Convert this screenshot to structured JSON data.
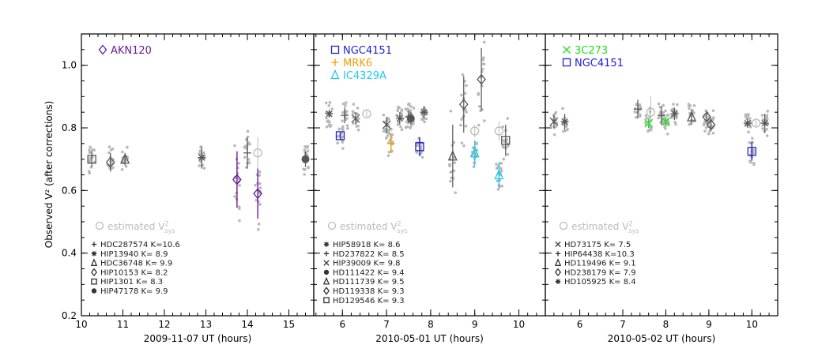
{
  "ylabel": "Observed V² (after corrections)",
  "ylim": [
    0.2,
    1.1
  ],
  "yticks": [
    0.2,
    0.4,
    0.6,
    0.8,
    1.0
  ],
  "ytick_labels": [
    "0.2",
    "0.4",
    "0.6",
    "0.8",
    "1.0"
  ],
  "colors": {
    "cal": "#555555",
    "scatter": "#b8b8b8",
    "est": "#bbbbbb",
    "purple": "#6a1b9a",
    "blue": "#2222cc",
    "orange": "#f0a000",
    "cyan": "#1ec8f0",
    "green": "#22e022"
  },
  "chart_data": [
    {
      "type": "scatter",
      "xlabel": "2009-11-07 UT (hours)",
      "xlim": [
        10,
        15.6
      ],
      "xticks": [
        10,
        11,
        12,
        13,
        14,
        15
      ],
      "xtick_labels": [
        "10",
        "11",
        "12",
        "13",
        "14",
        "15"
      ],
      "targets": [
        {
          "name": "AKN120",
          "symbol": "diamond",
          "color": "purple",
          "points": [
            {
              "x": 13.75,
              "y": 0.635,
              "err": 0.09
            },
            {
              "x": 14.25,
              "y": 0.59,
              "err": 0.08
            }
          ]
        }
      ],
      "estimated_label": "estimated V",
      "estimated_sup": "2",
      "estimated_sub": "sys",
      "estimated": [
        {
          "x": 14.25,
          "y": 0.72,
          "err": 0.05
        }
      ],
      "calibrators": [
        {
          "symbol": "plus",
          "label": "HDC287574 K=10.6",
          "points": [
            {
              "x": 14.0,
              "y": 0.72,
              "err": 0.05
            }
          ]
        },
        {
          "symbol": "asterisk",
          "label": "HIP13940 K= 8.9",
          "points": [
            {
              "x": 12.9,
              "y": 0.705,
              "err": 0.035
            }
          ]
        },
        {
          "symbol": "triangle",
          "label": "HDC36748 K= 9.9",
          "points": [
            {
              "x": 11.05,
              "y": 0.7,
              "err": 0.02
            }
          ]
        },
        {
          "symbol": "diamond",
          "label": "HIP10153 K= 8.2",
          "points": [
            {
              "x": 10.7,
              "y": 0.69,
              "err": 0.03
            }
          ]
        },
        {
          "symbol": "square",
          "label": "HIP1301 K= 8.3",
          "points": [
            {
              "x": 10.25,
              "y": 0.7,
              "err": 0.025
            }
          ]
        },
        {
          "symbol": "dot",
          "label": "HIP47178 K= 9.9",
          "points": [
            {
              "x": 15.4,
              "y": 0.7,
              "err": 0.025
            }
          ]
        }
      ]
    },
    {
      "type": "scatter",
      "xlabel": "2010-05-01 UT (hours)",
      "xlim": [
        5.35,
        10.6
      ],
      "xticks": [
        6,
        7,
        8,
        9,
        10
      ],
      "xtick_labels": [
        "6",
        "7",
        "8",
        "9",
        "10"
      ],
      "targets": [
        {
          "name": "NGC4151",
          "symbol": "square",
          "color": "blue",
          "points": [
            {
              "x": 5.95,
              "y": 0.775,
              "err": 0.01
            },
            {
              "x": 7.75,
              "y": 0.74,
              "err": 0.03
            }
          ]
        },
        {
          "name": "MRK6",
          "symbol": "plus",
          "color": "orange",
          "points": [
            {
              "x": 7.1,
              "y": 0.75,
              "err": 0.03
            }
          ]
        },
        {
          "name": "IC4329A",
          "symbol": "triangle",
          "color": "cyan",
          "points": [
            {
              "x": 9.0,
              "y": 0.72,
              "err": 0.04
            },
            {
              "x": 9.55,
              "y": 0.65,
              "err": 0.04
            }
          ]
        }
      ],
      "estimated_label": "estimated V",
      "estimated_sup": "2",
      "estimated_sub": "sys",
      "estimated": [
        {
          "x": 6.55,
          "y": 0.845,
          "err": 0.01
        },
        {
          "x": 9.0,
          "y": 0.79,
          "err": 0.02
        },
        {
          "x": 9.55,
          "y": 0.79,
          "err": 0.03
        }
      ],
      "calibrators": [
        {
          "symbol": "asterisk",
          "label": "HIP58918 K= 8.6",
          "points": [
            {
              "x": 5.7,
              "y": 0.845,
              "err": 0.01
            },
            {
              "x": 7.3,
              "y": 0.83,
              "err": 0.02
            },
            {
              "x": 7.85,
              "y": 0.85,
              "err": 0.02
            }
          ]
        },
        {
          "symbol": "plus",
          "label": "HD237822 K= 8.5",
          "points": [
            {
              "x": 6.05,
              "y": 0.84,
              "err": 0.025
            },
            {
              "x": 7.5,
              "y": 0.835,
              "err": 0.02
            }
          ]
        },
        {
          "symbol": "cross",
          "label": "HIP39009 K= 9.8",
          "points": [
            {
              "x": 6.3,
              "y": 0.83,
              "err": 0.02
            },
            {
              "x": 7.0,
              "y": 0.81,
              "err": 0.025
            }
          ]
        },
        {
          "symbol": "dot",
          "label": "HD111422 K= 9.4",
          "points": [
            {
              "x": 7.55,
              "y": 0.83,
              "err": 0.02
            }
          ]
        },
        {
          "symbol": "triangle",
          "label": "HD111739 K= 9.5",
          "points": [
            {
              "x": 8.5,
              "y": 0.71,
              "err": 0.1
            }
          ]
        },
        {
          "symbol": "diamond",
          "label": "HD119338 K= 9.3",
          "points": [
            {
              "x": 8.75,
              "y": 0.875,
              "err": 0.09
            },
            {
              "x": 9.15,
              "y": 0.955,
              "err": 0.1
            }
          ]
        },
        {
          "symbol": "square",
          "label": "HD129546 K= 9.3",
          "points": [
            {
              "x": 9.7,
              "y": 0.76,
              "err": 0.05
            }
          ]
        }
      ]
    },
    {
      "type": "scatter",
      "xlabel": "2010-05-02 UT (hours)",
      "xlim": [
        5.2,
        10.6
      ],
      "xticks": [
        6,
        7,
        8,
        9,
        10
      ],
      "xtick_labels": [
        "6",
        "7",
        "8",
        "9",
        "10"
      ],
      "targets": [
        {
          "name": "3C273",
          "symbol": "cross",
          "color": "green",
          "points": [
            {
              "x": 7.6,
              "y": 0.815,
              "err": 0.015
            },
            {
              "x": 8.0,
              "y": 0.82,
              "err": 0.015
            }
          ]
        },
        {
          "name": "NGC4151",
          "symbol": "square",
          "color": "blue",
          "points": [
            {
              "x": 10.0,
              "y": 0.725,
              "err": 0.03
            }
          ]
        }
      ],
      "estimated_label": "estimated V",
      "estimated_sup": "2",
      "estimated_sub": "sys",
      "estimated": [
        {
          "x": 7.65,
          "y": 0.85,
          "err": 0.05
        },
        {
          "x": 10.1,
          "y": 0.815,
          "err": 0.01
        }
      ],
      "calibrators": [
        {
          "symbol": "cross",
          "label": "HD73175 K= 7.5",
          "points": [
            {
              "x": 5.4,
              "y": 0.82,
              "err": 0.02
            }
          ]
        },
        {
          "symbol": "plus",
          "label": "HIP64438 K=10.3",
          "points": [
            {
              "x": 7.35,
              "y": 0.86,
              "err": 0.03
            },
            {
              "x": 7.9,
              "y": 0.84,
              "err": 0.03
            }
          ]
        },
        {
          "symbol": "triangle",
          "label": "HD119496 K= 9.1",
          "points": [
            {
              "x": 8.6,
              "y": 0.835,
              "err": 0.025
            }
          ]
        },
        {
          "symbol": "diamond",
          "label": "HD238179 K= 7.9",
          "points": [
            {
              "x": 8.95,
              "y": 0.835,
              "err": 0.02
            },
            {
              "x": 9.05,
              "y": 0.81,
              "err": 0.02
            }
          ]
        },
        {
          "symbol": "asterisk",
          "label": "HD105925 K= 8.4",
          "points": [
            {
              "x": 5.65,
              "y": 0.82,
              "err": 0.025
            },
            {
              "x": 8.2,
              "y": 0.845,
              "err": 0.02
            },
            {
              "x": 9.9,
              "y": 0.815,
              "err": 0.015
            },
            {
              "x": 10.3,
              "y": 0.815,
              "err": 0.03
            }
          ]
        }
      ]
    }
  ]
}
